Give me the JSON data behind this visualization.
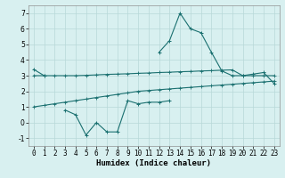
{
  "xlabel": "Humidex (Indice chaleur)",
  "x_values": [
    0,
    1,
    2,
    3,
    4,
    5,
    6,
    7,
    8,
    9,
    10,
    11,
    12,
    13,
    14,
    15,
    16,
    17,
    18,
    19,
    20,
    21,
    22,
    23
  ],
  "line1_y": [
    3.4,
    3.0,
    null,
    null,
    null,
    null,
    null,
    null,
    null,
    null,
    null,
    null,
    4.5,
    5.25,
    7.0,
    6.0,
    5.75,
    4.5,
    3.3,
    3.0,
    3.0,
    3.1,
    3.2,
    2.5
  ],
  "line2_y": [
    3.0,
    3.0,
    3.0,
    3.0,
    3.0,
    3.02,
    3.05,
    3.08,
    3.1,
    3.12,
    3.15,
    3.17,
    3.2,
    3.22,
    3.25,
    3.27,
    3.3,
    3.32,
    3.35,
    3.37,
    3.0,
    3.0,
    3.0,
    3.0
  ],
  "line3_y": [
    1.0,
    1.1,
    1.2,
    1.3,
    1.4,
    1.5,
    1.6,
    1.7,
    1.8,
    1.9,
    2.0,
    2.05,
    2.1,
    2.15,
    2.2,
    2.25,
    2.3,
    2.35,
    2.4,
    2.45,
    2.5,
    2.55,
    2.6,
    2.65
  ],
  "line4_y": [
    null,
    null,
    null,
    0.8,
    0.5,
    -0.8,
    0.0,
    -0.6,
    -0.6,
    1.4,
    1.2,
    1.3,
    1.3,
    1.4,
    null,
    null,
    null,
    null,
    null,
    null,
    null,
    null,
    null,
    null
  ],
  "color": "#1a7070",
  "bg_color": "#d8f0f0",
  "grid_color": "#b8d8d8",
  "ylim": [
    -1.5,
    7.5
  ],
  "xlim": [
    -0.5,
    23.5
  ],
  "yticks": [
    -1,
    0,
    1,
    2,
    3,
    4,
    5,
    6,
    7
  ],
  "xticks": [
    0,
    1,
    2,
    3,
    4,
    5,
    6,
    7,
    8,
    9,
    10,
    11,
    12,
    13,
    14,
    15,
    16,
    17,
    18,
    19,
    20,
    21,
    22,
    23
  ],
  "xlabel_fontsize": 6.5,
  "tick_fontsize": 5.5
}
